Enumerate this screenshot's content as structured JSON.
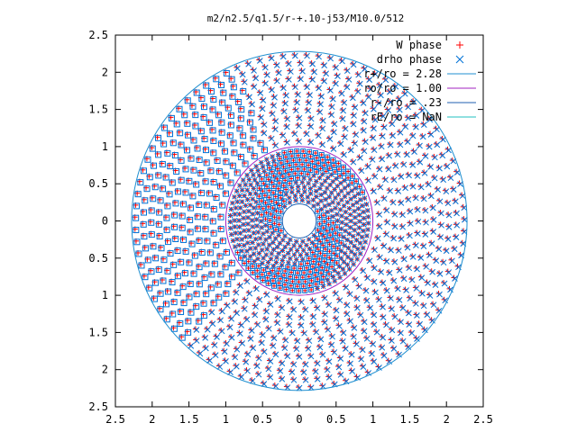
{
  "chart_data": {
    "type": "scatter",
    "title": "m2/n2.5/q1.5/r-+.10-j53/M10.0/512",
    "xlabel": "",
    "ylabel": "",
    "xlim": [
      -2.5,
      2.5
    ],
    "ylim": [
      -2.5,
      2.5
    ],
    "x_ticks": [
      "2.5",
      "2",
      "1.5",
      "1",
      "0.5",
      "0",
      "0.5",
      "1",
      "1.5",
      "2",
      "2.5"
    ],
    "y_ticks": [
      "2.5",
      "2",
      "1.5",
      "1",
      "0.5",
      "0",
      "0.5",
      "1",
      "1.5",
      "2",
      "2.5"
    ],
    "grid": false,
    "legend_position": "top-right",
    "series": [
      {
        "name": "W phase",
        "marker": "plus",
        "color": "#ff0000"
      },
      {
        "name": "drho phase",
        "marker": "cross",
        "color": "#0072d6"
      }
    ],
    "overlays": [
      {
        "name": "r+/ro = 2.28",
        "radius": 2.28,
        "color": "#1f8fd0"
      },
      {
        "name": "ro/ro = 1.00",
        "radius": 1.0,
        "color": "#a020c0"
      },
      {
        "name": "r-/ro = .23",
        "radius": 0.23,
        "color": "#1f5fb0"
      },
      {
        "name": "rE/ro = NaN",
        "radius": null,
        "color": "#20c0c0"
      }
    ]
  }
}
